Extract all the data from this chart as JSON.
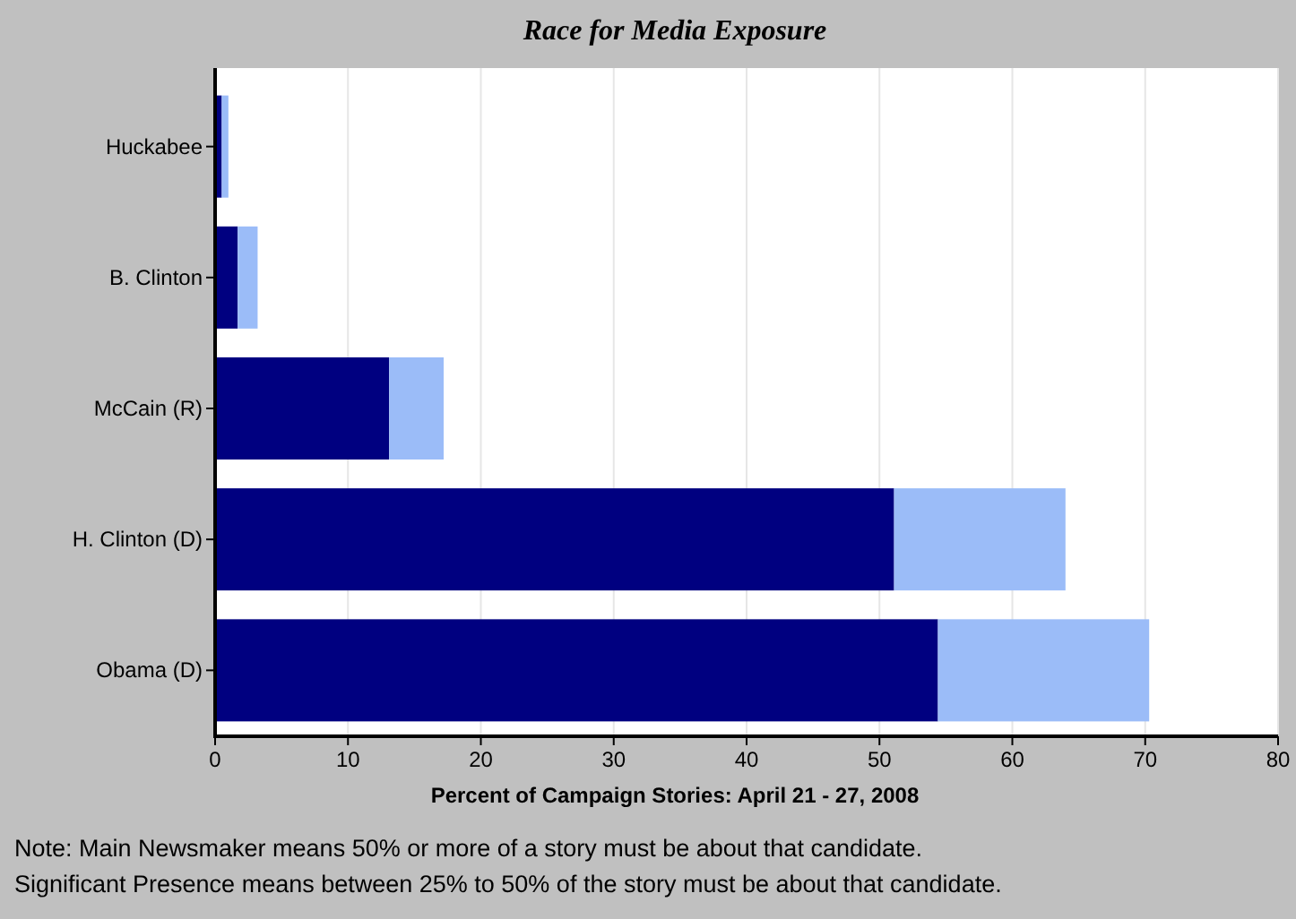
{
  "chart_data": {
    "type": "bar",
    "title": "Race for Media Exposure",
    "orientation": "horizontal",
    "stacked": true,
    "categories": [
      "Huckabee",
      "B. Clinton",
      "McCain (R)",
      "H. Clinton (D)",
      "Obama (D)"
    ],
    "series": [
      {
        "color": "#000080",
        "values": [
          0.5,
          1.7,
          13.1,
          51.1,
          54.4
        ]
      },
      {
        "color": "#9bbcf8",
        "values": [
          0.5,
          1.5,
          4.1,
          12.9,
          15.9
        ]
      }
    ],
    "xlim": [
      0,
      80
    ],
    "xticks": [
      0,
      10,
      20,
      30,
      40,
      50,
      60,
      70,
      80
    ],
    "grid": "x",
    "xlabel": "Percent of Campaign Stories: April 21 - 27, 2008",
    "annotations": [
      "Note: Main Newsmaker means 50% or more of a story must be about that candidate.",
      "Significant Presence means between 25% to 50% of the story must be about that candidate."
    ]
  }
}
